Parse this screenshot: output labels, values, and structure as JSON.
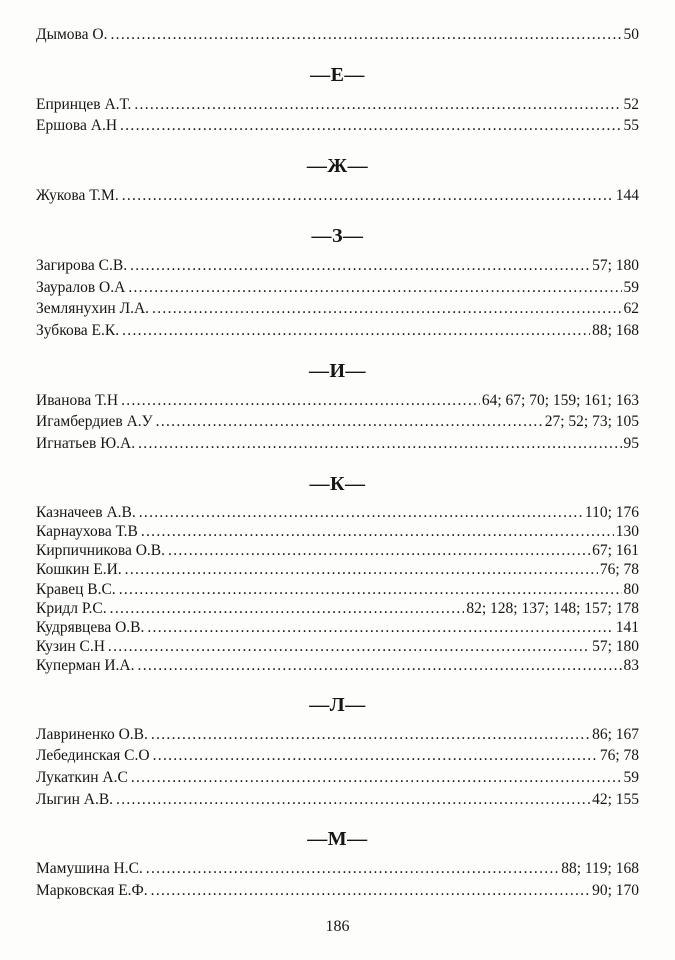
{
  "document": {
    "kind_label": "author index page",
    "ink_color": "#161616",
    "paper_color": "#fdfdfc",
    "footer_page_number": "186",
    "sections": [
      {
        "header": "",
        "entries": [
          {
            "name": "Дымова О.",
            "pages": "50"
          }
        ]
      },
      {
        "header": "—Е—",
        "entries": [
          {
            "name": "Епринцев А.Т.",
            "pages": "52"
          },
          {
            "name": "Ершова А.Н",
            "pages": "55"
          }
        ]
      },
      {
        "header": "—Ж—",
        "entries": [
          {
            "name": "Жукова Т.М.",
            "pages": "144"
          }
        ]
      },
      {
        "header": "—З—",
        "entries": [
          {
            "name": "Загирова С.В.",
            "pages": "57; 180"
          },
          {
            "name": "Зауралов О.А",
            "pages": "59"
          },
          {
            "name": "Землянухин Л.А.",
            "pages": "62"
          },
          {
            "name": "Зубкова Е.К.",
            "pages": "88; 168"
          }
        ]
      },
      {
        "header": "—И—",
        "entries": [
          {
            "name": "Иванова Т.Н",
            "pages": "64; 67; 70; 159; 161; 163"
          },
          {
            "name": "Игамбердиев А.У",
            "pages": "27; 52; 73; 105"
          },
          {
            "name": "Игнатьев Ю.А.",
            "pages": "95"
          }
        ]
      },
      {
        "header": "—К—",
        "entries": [
          {
            "name": "Казначеев А.В.",
            "pages": "110; 176"
          },
          {
            "name": "Карнаухова Т.В",
            "pages": "130"
          },
          {
            "name": "Кирпичникова О.В.",
            "pages": "67; 161"
          },
          {
            "name": "Кошкин Е.И.",
            "pages": "76; 78"
          },
          {
            "name": "Кравец В.С.",
            "pages": "80"
          },
          {
            "name": "Кридл Р.С.",
            "pages": "82; 128; 137; 148; 157; 178"
          },
          {
            "name": "Кудрявцева О.В.",
            "pages": "141"
          },
          {
            "name": "Кузин С.Н",
            "pages": "57; 180"
          },
          {
            "name": "Куперман И.А.",
            "pages": "83"
          }
        ]
      },
      {
        "header": "—Л—",
        "entries": [
          {
            "name": "Лавриненко О.В.",
            "pages": "86; 167"
          },
          {
            "name": "Лебединская С.О",
            "pages": "76; 78"
          },
          {
            "name": "Лукаткин А.С",
            "pages": "59"
          },
          {
            "name": "Лыгин А.В.",
            "pages": "42; 155"
          }
        ]
      },
      {
        "header": "—М—",
        "entries": [
          {
            "name": "Мамушина Н.С.",
            "pages": "88; 119; 168"
          },
          {
            "name": "Марковская Е.Ф.",
            "pages": "90; 170"
          }
        ]
      }
    ]
  }
}
